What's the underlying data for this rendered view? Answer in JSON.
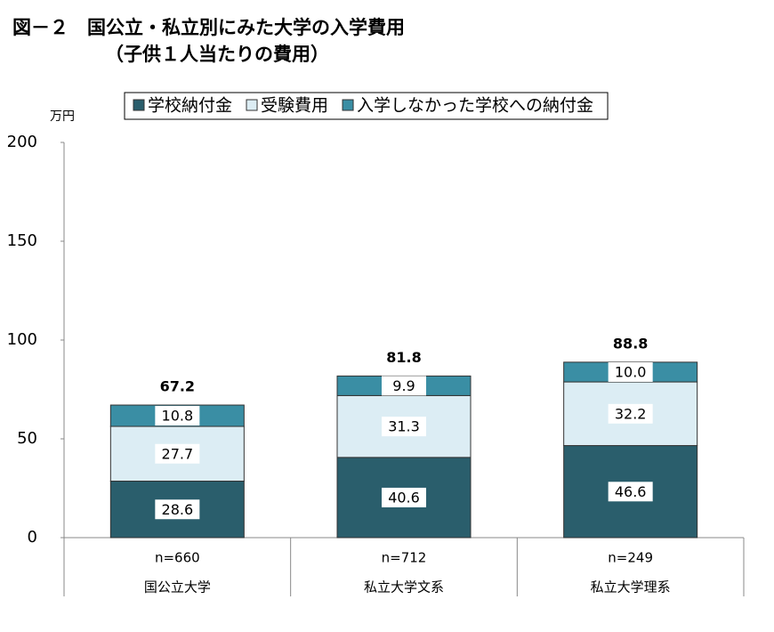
{
  "chart_data": {
    "type": "stacked-bar",
    "title": "図－２　国公立・私立別にみた大学の入学費用",
    "subtitle": "（子供１人当たりの費用）",
    "y_unit": "万円",
    "categories": [
      "国公立大学",
      "私立大学文系",
      "私立大学理系"
    ],
    "sample_sizes": [
      "n=660",
      "n=712",
      "n=249"
    ],
    "series": [
      {
        "name": "学校納付金",
        "color": "#2a5e6c",
        "values": [
          28.6,
          40.6,
          46.6
        ]
      },
      {
        "name": "受験費用",
        "color": "#dcedf4",
        "values": [
          27.7,
          31.3,
          32.2
        ]
      },
      {
        "name": "入学しなかった学校への納付金",
        "color": "#3a8ea4",
        "values": [
          10.8,
          9.9,
          10.0
        ],
        "value_labels": [
          "10.8",
          "9.9",
          "10.0"
        ]
      }
    ],
    "totals": [
      67.2,
      81.8,
      88.8
    ],
    "ylim": [
      0,
      200
    ],
    "yticks": [
      0,
      50,
      100,
      150,
      200
    ],
    "grid": false
  }
}
